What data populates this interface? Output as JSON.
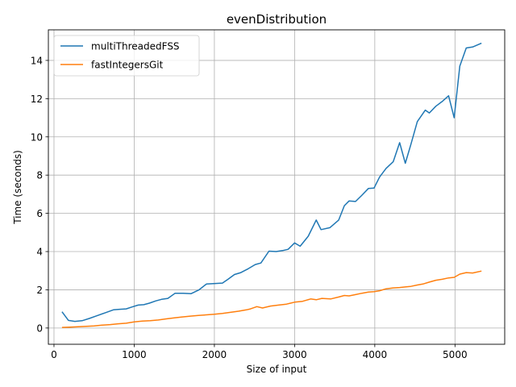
{
  "chart_data": {
    "type": "line",
    "title": "evenDistribution",
    "xlabel": "Size of input",
    "ylabel": "Time (seconds)",
    "xlim": [
      -70,
      5620
    ],
    "ylim": [
      -0.85,
      15.6
    ],
    "xticks": [
      0,
      1000,
      2000,
      3000,
      4000,
      5000
    ],
    "yticks": [
      0,
      2,
      4,
      6,
      8,
      10,
      12,
      14
    ],
    "grid": true,
    "legend": "upper-left",
    "series": [
      {
        "name": "multiThreadedFSS",
        "color": "#1f77b4",
        "x": [
          100,
          180,
          260,
          350,
          440,
          540,
          640,
          740,
          820,
          900,
          970,
          1050,
          1120,
          1190,
          1270,
          1340,
          1420,
          1510,
          1610,
          1710,
          1810,
          1900,
          1990,
          2100,
          2170,
          2250,
          2330,
          2420,
          2510,
          2580,
          2680,
          2770,
          2850,
          2920,
          3000,
          3070,
          3170,
          3270,
          3330,
          3440,
          3550,
          3620,
          3680,
          3760,
          3840,
          3920,
          3990,
          4060,
          4140,
          4230,
          4310,
          4380,
          4450,
          4530,
          4630,
          4680,
          4760,
          4840,
          4920,
          4990,
          5060,
          5140,
          5220,
          5330
        ],
        "y": [
          0.85,
          0.4,
          0.35,
          0.38,
          0.5,
          0.65,
          0.8,
          0.95,
          0.98,
          1.0,
          1.1,
          1.2,
          1.22,
          1.3,
          1.42,
          1.5,
          1.55,
          1.82,
          1.82,
          1.8,
          2.0,
          2.3,
          2.32,
          2.35,
          2.55,
          2.8,
          2.9,
          3.1,
          3.32,
          3.4,
          4.02,
          4.0,
          4.05,
          4.12,
          4.45,
          4.28,
          4.8,
          5.65,
          5.15,
          5.25,
          5.65,
          6.4,
          6.65,
          6.62,
          6.95,
          7.3,
          7.32,
          7.9,
          8.35,
          8.7,
          9.7,
          8.62,
          9.6,
          10.8,
          11.4,
          11.25,
          11.6,
          11.85,
          12.15,
          11.0,
          13.7,
          14.65,
          14.7,
          14.9
        ]
      },
      {
        "name": "fastIntegersGit",
        "color": "#ff7f0e",
        "x": [
          100,
          200,
          300,
          400,
          500,
          600,
          700,
          800,
          900,
          1000,
          1100,
          1200,
          1300,
          1400,
          1500,
          1600,
          1700,
          1800,
          1900,
          2000,
          2100,
          2200,
          2300,
          2400,
          2450,
          2530,
          2600,
          2700,
          2800,
          2900,
          2950,
          3000,
          3100,
          3200,
          3270,
          3340,
          3450,
          3550,
          3620,
          3680,
          3760,
          3840,
          3920,
          3990,
          4060,
          4140,
          4230,
          4310,
          4380,
          4450,
          4530,
          4600,
          4680,
          4760,
          4840,
          4920,
          4990,
          5060,
          5140,
          5220,
          5330
        ],
        "y": [
          0.03,
          0.05,
          0.07,
          0.09,
          0.11,
          0.15,
          0.18,
          0.22,
          0.25,
          0.32,
          0.36,
          0.38,
          0.42,
          0.48,
          0.53,
          0.58,
          0.62,
          0.66,
          0.69,
          0.72,
          0.76,
          0.82,
          0.88,
          0.95,
          1.0,
          1.12,
          1.05,
          1.15,
          1.2,
          1.25,
          1.3,
          1.35,
          1.4,
          1.52,
          1.48,
          1.55,
          1.52,
          1.62,
          1.7,
          1.68,
          1.75,
          1.82,
          1.88,
          1.9,
          1.95,
          2.05,
          2.1,
          2.12,
          2.15,
          2.18,
          2.25,
          2.3,
          2.4,
          2.5,
          2.55,
          2.62,
          2.65,
          2.82,
          2.9,
          2.88,
          2.98
        ]
      }
    ]
  }
}
